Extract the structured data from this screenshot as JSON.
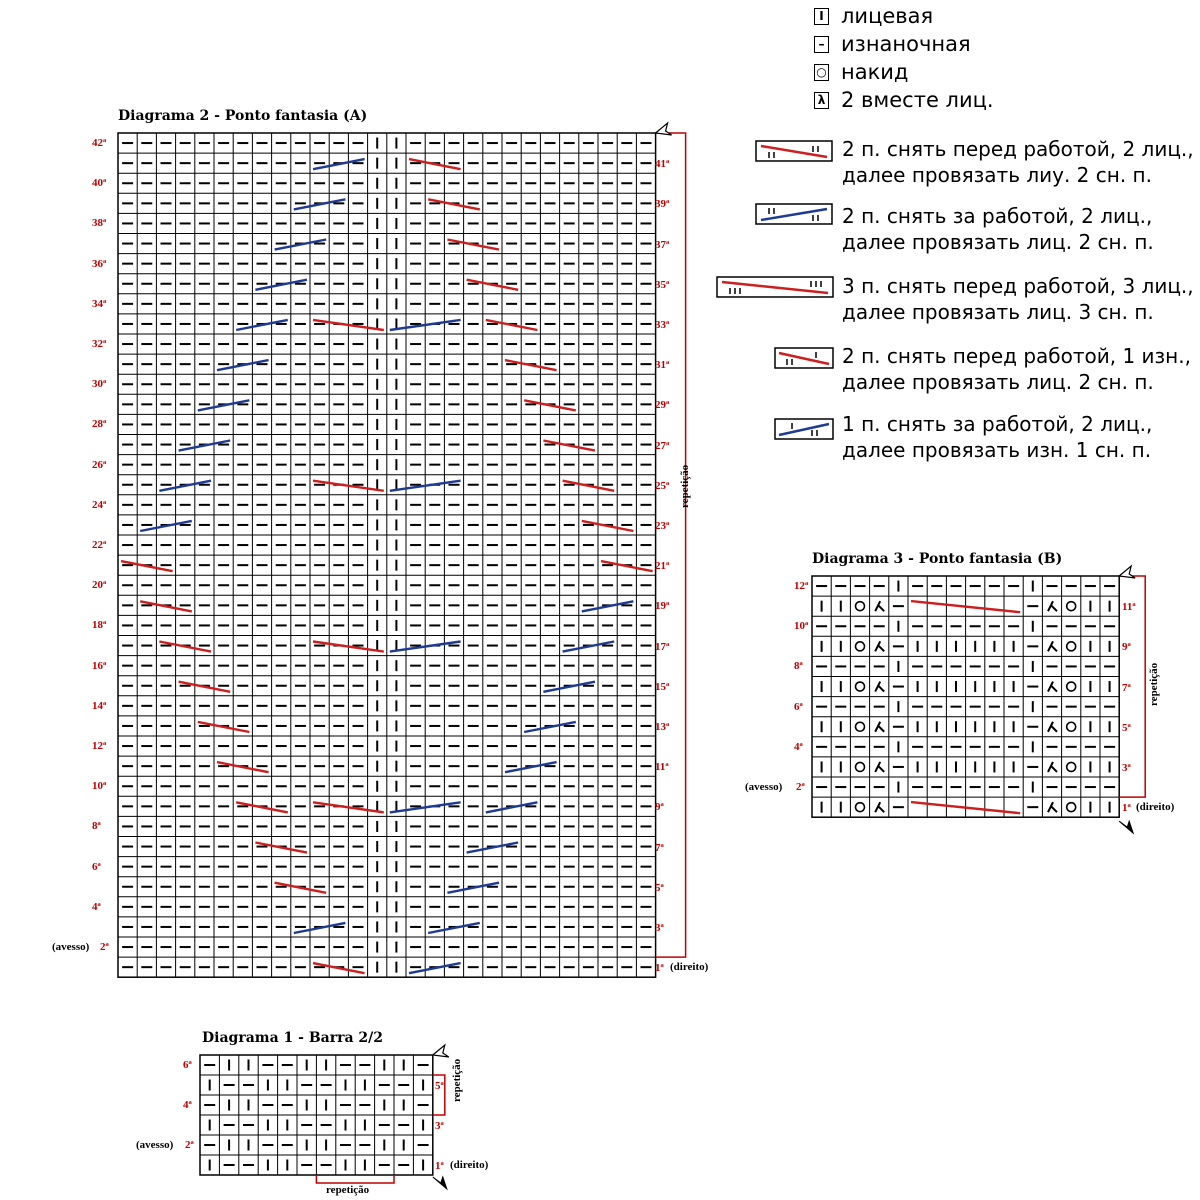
{
  "legend": {
    "symbols": [
      {
        "icon": "knit-symbol-icon",
        "glyph": "I",
        "label": "лицевая"
      },
      {
        "icon": "purl-symbol-icon",
        "glyph": "–",
        "label": "изнаночная"
      },
      {
        "icon": "yarn-over-icon",
        "glyph": "○",
        "label": "накид"
      },
      {
        "icon": "k2tog-icon",
        "glyph": "λ",
        "label": "2 вместе лиц."
      }
    ],
    "cables": [
      {
        "icon": "cable-2-2-front-icon",
        "line1": "2 п. снять перед работой, 2 лиц.,",
        "line2": "далее провязать лиу. 2 сн. п."
      },
      {
        "icon": "cable-2-2-back-icon",
        "line1": "2 п. снять за работой, 2 лиц.,",
        "line2": "далее провязать лиц. 2 сн. п."
      },
      {
        "icon": "cable-3-3-front-icon",
        "line1": "3 п. снять перед работой, 3 лиц.,",
        "line2": "далее провязать лиц. 3 сн. п."
      },
      {
        "icon": "cable-2-1-front-purl-icon",
        "line1": "2 п. снять перед работой, 1 изн.,",
        "line2": "далее провязать лиц. 2 сн. п."
      },
      {
        "icon": "cable-1-2-back-purl-icon",
        "line1": "1 п. снять за работой, 2 лиц.,",
        "line2": "далее провязать изн. 1 сн. п."
      }
    ]
  },
  "diagram2": {
    "title": "Diagrama 2 - Ponto fantasia (A)",
    "rows": 42,
    "cols": 28,
    "even_row_labels": [
      "42ª",
      "40ª",
      "38ª",
      "36ª",
      "34ª",
      "32ª",
      "30ª",
      "28ª",
      "26ª",
      "24ª",
      "22ª",
      "20ª",
      "18ª",
      "16ª",
      "14ª",
      "12ª",
      "10ª",
      "8ª",
      "6ª",
      "4ª"
    ],
    "odd_row_labels": [
      "41ª",
      "39ª",
      "37ª",
      "35ª",
      "33ª",
      "31ª",
      "29ª",
      "27ª",
      "25ª",
      "23ª",
      "21ª",
      "19ª",
      "17ª",
      "15ª",
      "13ª",
      "11ª",
      "9ª",
      "7ª",
      "5ª",
      "3ª"
    ],
    "first_row_label": "1ª",
    "first_row_note": "(direito)",
    "second_row_label": "2ª",
    "second_row_note": "(avesso)",
    "repeat_label": "repetição"
  },
  "diagram3": {
    "title": "Diagrama 3 - Ponto fantasia (B)",
    "rows": 12,
    "cols": 16,
    "even_row_labels": [
      "12ª",
      "10ª",
      "8ª",
      "6ª",
      "4ª"
    ],
    "odd_row_labels": [
      "11ª",
      "9ª",
      "7ª",
      "5ª",
      "3ª"
    ],
    "first_row_label": "1ª",
    "first_row_note": "(direito)",
    "second_row_label": "2ª",
    "second_row_note": "(avesso)",
    "repeat_label": "repetição"
  },
  "diagram1": {
    "title": "Diagrama 1 - Barra 2/2",
    "rows": 6,
    "cols": 12,
    "row_labels_left": [
      "6ª",
      "4ª"
    ],
    "row_labels_right": [
      "5ª",
      "3ª"
    ],
    "first_row_label": "1ª",
    "first_row_note": "(direito)",
    "second_row_label": "2ª",
    "second_row_note": "(avesso)",
    "repeat_label_side": "repetição",
    "repeat_label_bottom": "repetição"
  },
  "colors": {
    "front_cable": "#cc1f1f",
    "back_cable": "#1f3a93",
    "row_label": "#c00000",
    "repeat_bracket": "#c00000"
  }
}
